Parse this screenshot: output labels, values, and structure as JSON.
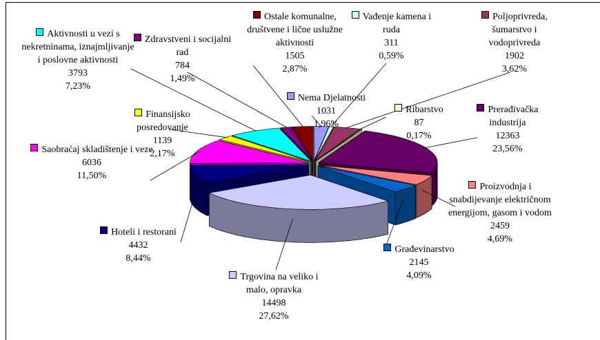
{
  "chart_data": {
    "type": "pie3d",
    "categories": [
      "Nema Djelatnosti",
      "Vađenje kamena i ruda",
      "Poljoprivreda, šumarstvo i vodoprivreda",
      "Ribarstvo",
      "Prerađivačka industrija",
      "Proizvodnja i snabdijevanje električnom energijom, gasom i vodom",
      "Građevinarstvo",
      "Trgovina na veliko i malo, opravka",
      "Hoteli i restorani",
      "Saobraćaj skladištenje i veze",
      "Finansijsko posredovanje",
      "Aktivnosti u vezi s nekretninama, iznajmljivanje i poslovne aktivnosti",
      "Zdravstveni i socijalni rad",
      "Ostale komunalne, društvene i lične uslužne aktivnosti"
    ],
    "values": [
      1031,
      311,
      1902,
      87,
      12363,
      2459,
      2145,
      14498,
      4432,
      6036,
      1139,
      3793,
      784,
      1505
    ],
    "percentage_labels": [
      "1,96%",
      "0,59%",
      "3,62%",
      "0,17%",
      "23,56%",
      "4,69%",
      "4,09%",
      "27,62%",
      "8,44%",
      "11,50%",
      "2,17%",
      "7,23%",
      "1,49%",
      "2,87%"
    ],
    "colors": [
      "#9999ff",
      "#ccffff",
      "#993366",
      "#ffffcc",
      "#660066",
      "#ff8080",
      "#0066cc",
      "#ccccff",
      "#000080",
      "#ff00ff",
      "#ffff00",
      "#00ffff",
      "#800080",
      "#800000"
    ],
    "exploded": "Trgovina na veliko i malo, opravka"
  }
}
